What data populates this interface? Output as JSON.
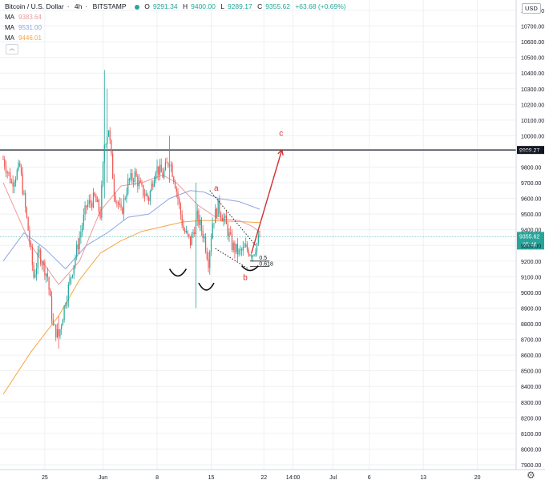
{
  "header": {
    "symbol": "Bitcoin / U.S. Dollar",
    "interval": "4h",
    "exchange": "BITSTAMP",
    "open_label": "O",
    "open": "9291.34",
    "high_label": "H",
    "high": "9400.00",
    "low_label": "L",
    "low": "9289.17",
    "close_label": "C",
    "close": "9355.62",
    "change": "+63.68 (+0.69%)"
  },
  "ma": [
    {
      "name": "MA",
      "value": "9383.64",
      "color": "#ef9a9a"
    },
    {
      "name": "MA",
      "value": "9531.00",
      "color": "#90a4e6"
    },
    {
      "name": "MA",
      "value": "9446.01",
      "color": "#f5a742"
    }
  ],
  "collapse_glyph": "︿",
  "currency": "USD",
  "colors": {
    "up": "#26a69a",
    "down": "#ef5350",
    "annotation": "#d32f2f",
    "grid": "#eef0f3"
  },
  "chart_data": {
    "type": "candlestick",
    "y_axis": {
      "min": 7850,
      "max": 10850,
      "ticks": [
        10800,
        10700,
        10600,
        10500,
        10400,
        10300,
        10200,
        10100,
        10000,
        9900,
        9800,
        9700,
        9600,
        9500,
        9400,
        9300,
        9200,
        9100,
        9000,
        8900,
        8800,
        8700,
        8600,
        8500,
        8400,
        8300,
        8200,
        8100,
        8000,
        7900
      ],
      "tick_labels": [
        "10800.00",
        "10700.00",
        "10600.00",
        "10500.00",
        "10400.00",
        "10300.00",
        "10200.00",
        "10100.00",
        "10000.00",
        "9900.00",
        "9800.00",
        "9700.00",
        "9600.00",
        "9500.00",
        "9400.00",
        "9300.00",
        "9200.00",
        "9100.00",
        "9000.00",
        "8900.00",
        "8800.00",
        "8700.00",
        "8600.00",
        "8500.00",
        "8400.00",
        "8300.00",
        "8200.00",
        "8100.00",
        "8000.00",
        "7900.00"
      ]
    },
    "x_axis": {
      "tick_labels": [
        "25",
        "Jun",
        "8",
        "15",
        "22",
        "14:00",
        "Jul",
        "6",
        "13",
        "20"
      ],
      "tick_index": [
        30,
        72,
        111,
        150,
        188,
        209,
        238,
        264,
        303,
        342
      ]
    },
    "last_price": {
      "value": 9355.62,
      "label": "9355.62",
      "countdown": "05:48"
    },
    "horizontal_line": {
      "value": 9909.27,
      "label": "9909.27"
    },
    "anchor_points": [
      {
        "i": 0,
        "price": 9850
      },
      {
        "i": 6,
        "price": 9700
      },
      {
        "i": 12,
        "price": 9800
      },
      {
        "i": 18,
        "price": 9400
      },
      {
        "i": 22,
        "price": 9100
      },
      {
        "i": 26,
        "price": 9250
      },
      {
        "i": 32,
        "price": 9100
      },
      {
        "i": 36,
        "price": 8780
      },
      {
        "i": 40,
        "price": 8720
      },
      {
        "i": 45,
        "price": 8950
      },
      {
        "i": 50,
        "price": 9150
      },
      {
        "i": 55,
        "price": 9350
      },
      {
        "i": 60,
        "price": 9550
      },
      {
        "i": 66,
        "price": 9600
      },
      {
        "i": 70,
        "price": 9500
      },
      {
        "i": 73,
        "price": 9950
      },
      {
        "i": 76,
        "price": 10050
      },
      {
        "i": 80,
        "price": 9650
      },
      {
        "i": 85,
        "price": 9500
      },
      {
        "i": 90,
        "price": 9700
      },
      {
        "i": 95,
        "price": 9750
      },
      {
        "i": 100,
        "price": 9650
      },
      {
        "i": 105,
        "price": 9600
      },
      {
        "i": 110,
        "price": 9800
      },
      {
        "i": 115,
        "price": 9750
      },
      {
        "i": 120,
        "price": 9850
      },
      {
        "i": 124,
        "price": 9700
      },
      {
        "i": 127,
        "price": 9550
      },
      {
        "i": 130,
        "price": 9400
      },
      {
        "i": 135,
        "price": 9320
      },
      {
        "i": 140,
        "price": 9480
      },
      {
        "i": 145,
        "price": 9350
      },
      {
        "i": 148,
        "price": 9200
      },
      {
        "i": 151,
        "price": 9450
      },
      {
        "i": 155,
        "price": 9550
      },
      {
        "i": 160,
        "price": 9450
      },
      {
        "i": 165,
        "price": 9300
      },
      {
        "i": 170,
        "price": 9250
      },
      {
        "i": 175,
        "price": 9280
      },
      {
        "i": 180,
        "price": 9250
      },
      {
        "i": 185,
        "price": 9356
      }
    ],
    "spikes": [
      {
        "i": 73,
        "high": 10420,
        "low": 9600
      },
      {
        "i": 75,
        "high": 10300,
        "low": 9700
      },
      {
        "i": 120,
        "high": 10000,
        "low": 9700
      },
      {
        "i": 139,
        "high": 9700,
        "low": 8900
      },
      {
        "i": 40,
        "high": 8850,
        "low": 8640
      }
    ],
    "ma_series": [
      {
        "name": "MA",
        "color": "#ef9a9a",
        "points": [
          [
            0,
            9700
          ],
          [
            20,
            9300
          ],
          [
            40,
            9050
          ],
          [
            55,
            9200
          ],
          [
            70,
            9520
          ],
          [
            85,
            9680
          ],
          [
            100,
            9700
          ],
          [
            115,
            9750
          ],
          [
            125,
            9700
          ],
          [
            140,
            9560
          ],
          [
            155,
            9470
          ],
          [
            170,
            9460
          ],
          [
            180,
            9420
          ],
          [
            185,
            9384
          ]
        ]
      },
      {
        "name": "MA",
        "color": "#90a4e6",
        "points": [
          [
            0,
            9200
          ],
          [
            15,
            9380
          ],
          [
            30,
            9280
          ],
          [
            45,
            9150
          ],
          [
            60,
            9300
          ],
          [
            75,
            9380
          ],
          [
            90,
            9480
          ],
          [
            105,
            9500
          ],
          [
            120,
            9600
          ],
          [
            135,
            9650
          ],
          [
            145,
            9640
          ],
          [
            155,
            9600
          ],
          [
            170,
            9580
          ],
          [
            185,
            9531
          ]
        ]
      },
      {
        "name": "MA",
        "color": "#f5a742",
        "points": [
          [
            0,
            8350
          ],
          [
            20,
            8620
          ],
          [
            40,
            8850
          ],
          [
            55,
            9080
          ],
          [
            70,
            9250
          ],
          [
            85,
            9330
          ],
          [
            100,
            9390
          ],
          [
            115,
            9420
          ],
          [
            130,
            9450
          ],
          [
            145,
            9460
          ],
          [
            160,
            9455
          ],
          [
            175,
            9450
          ],
          [
            185,
            9446
          ]
        ]
      }
    ],
    "annotations": {
      "labels": [
        {
          "text": "a",
          "i": 152,
          "price": 9650
        },
        {
          "text": "b",
          "i": 173,
          "price": 9080
        },
        {
          "text": "c",
          "i": 199,
          "price": 10000
        }
      ],
      "fib": [
        {
          "text": "0.5",
          "i": 180,
          "price": 9225
        },
        {
          "text": "0.618",
          "i": 180,
          "price": 9185
        }
      ],
      "fib_lines": [
        {
          "i0": 178,
          "i1": 192,
          "price": 9200
        },
        {
          "i0": 178,
          "i1": 192,
          "price": 9165
        }
      ],
      "dotted_lines": [
        {
          "i0": 149,
          "p0": 9650,
          "i1": 182,
          "p1": 9300
        },
        {
          "i0": 153,
          "p0": 9280,
          "i1": 177,
          "p1": 9150
        }
      ],
      "arrow": {
        "i0": 179,
        "p0": 9250,
        "i1": 201,
        "p1": 9910
      },
      "arcs": [
        {
          "i0": 120,
          "i1": 132,
          "price": 9150,
          "depth": 45
        },
        {
          "i0": 141,
          "i1": 152,
          "price": 9060,
          "depth": 45
        },
        {
          "i0": 172,
          "i1": 184,
          "price": 9170,
          "depth": 30
        }
      ]
    }
  }
}
